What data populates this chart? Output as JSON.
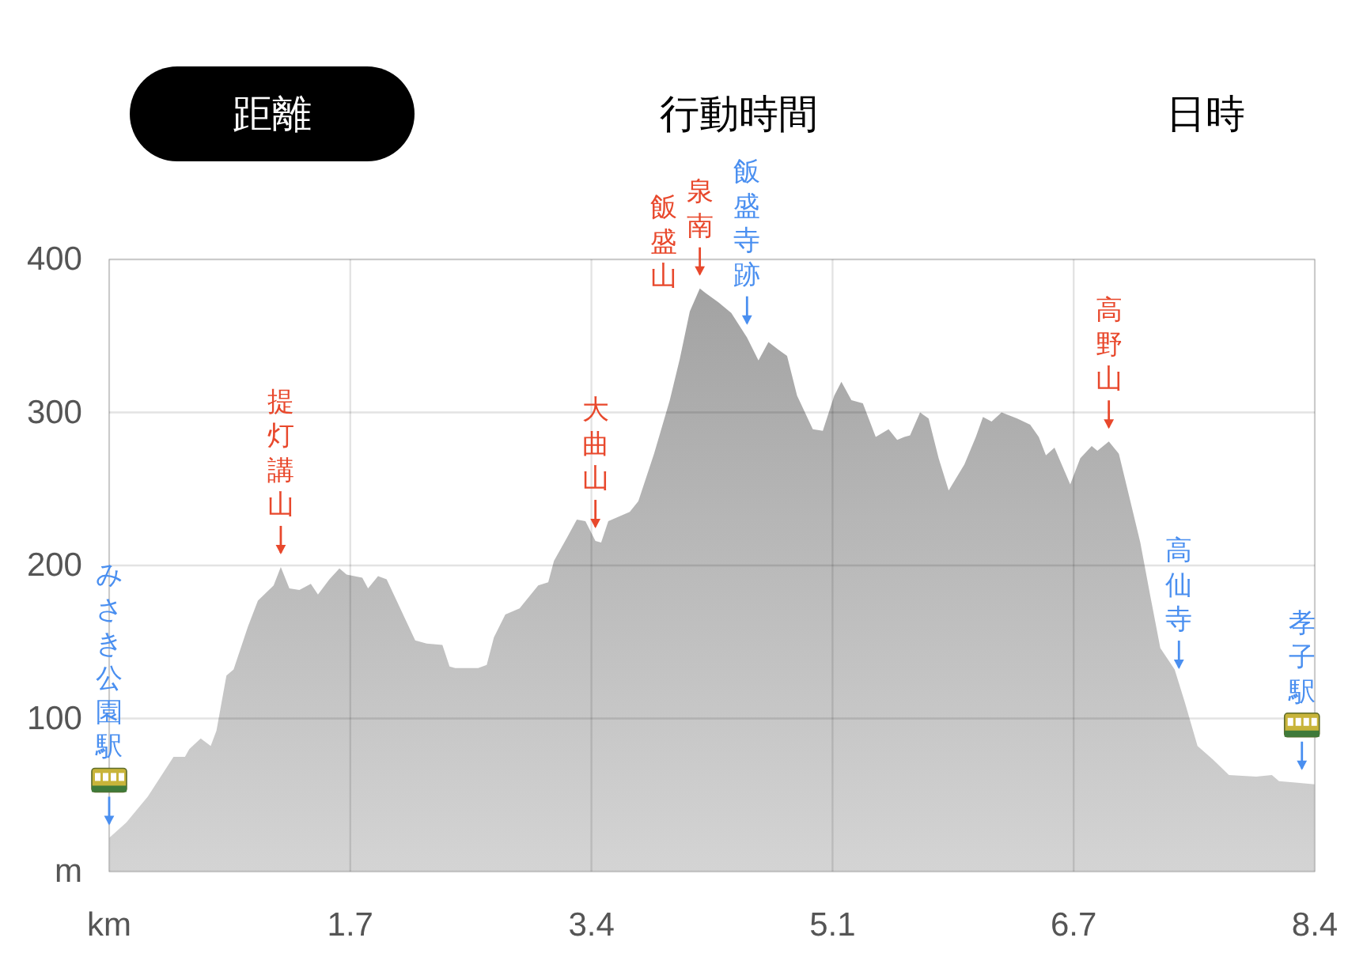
{
  "chart_data": {
    "type": "area",
    "color": "#a0a0a0",
    "x": [
      0,
      0.12,
      0.27,
      0.45,
      0.53,
      0.56,
      0.64,
      0.71,
      0.75,
      0.82,
      0.87,
      0.97,
      1.04,
      1.15,
      1.2,
      1.26,
      1.33,
      1.41,
      1.46,
      1.54,
      1.61,
      1.66,
      1.77,
      1.81,
      1.88,
      1.94,
      2.03,
      2.14,
      2.22,
      2.33,
      2.38,
      2.42,
      2.58,
      2.64,
      2.69,
      2.77,
      2.87,
      3.0,
      3.07,
      3.11,
      3.2,
      3.27,
      3.33,
      3.4,
      3.44,
      3.49,
      3.64,
      3.7,
      3.81,
      3.92,
      3.99,
      4.06,
      4.13,
      4.17,
      4.26,
      4.35,
      4.46,
      4.54,
      4.61,
      4.68,
      4.74,
      4.81,
      4.92,
      4.99,
      5.07,
      5.12,
      5.19,
      5.27,
      5.36,
      5.45,
      5.51,
      5.56,
      5.6,
      5.67,
      5.73,
      5.8,
      5.87,
      5.98,
      6.06,
      6.11,
      6.17,
      6.24,
      6.35,
      6.44,
      6.5,
      6.55,
      6.61,
      6.66,
      6.72,
      6.79,
      6.87,
      6.91,
      6.99,
      7.06,
      7.13,
      7.21,
      7.28,
      7.35,
      7.45,
      7.52,
      7.61,
      7.72,
      7.83,
      8.02,
      8.13,
      8.18,
      8.31,
      8.43
    ],
    "values": [
      22,
      32,
      49,
      75,
      75,
      80,
      87,
      82,
      92,
      128,
      132,
      160,
      177,
      187,
      199,
      185,
      184,
      188,
      181,
      191,
      198,
      194,
      192,
      185,
      193,
      191,
      173,
      151,
      149,
      148,
      134,
      133,
      133,
      135,
      153,
      168,
      172,
      187,
      189,
      203,
      218,
      230,
      229,
      216,
      215,
      229,
      235,
      242,
      273,
      308,
      335,
      366,
      381,
      378,
      372,
      365,
      349,
      334,
      346,
      341,
      337,
      311,
      289,
      288,
      311,
      320,
      308,
      306,
      284,
      289,
      282,
      284,
      285,
      300,
      296,
      270,
      249,
      266,
      284,
      297,
      294,
      300,
      296,
      292,
      284,
      272,
      277,
      266,
      253,
      270,
      278,
      275,
      281,
      273,
      246,
      215,
      180,
      146,
      132,
      111,
      82,
      73,
      63,
      62,
      63,
      59,
      58,
      57
    ],
    "xlim": [
      0,
      8.43
    ],
    "ylim": [
      0,
      400
    ],
    "xticks": [
      {
        "value": 0,
        "label": "km"
      },
      {
        "value": 1.686,
        "label": "1.7"
      },
      {
        "value": 3.372,
        "label": "3.4"
      },
      {
        "value": 5.058,
        "label": "5.1"
      },
      {
        "value": 6.744,
        "label": "6.7"
      },
      {
        "value": 8.43,
        "label": "8.4"
      }
    ],
    "yticks": [
      {
        "value": 0,
        "label": "m"
      },
      100,
      200,
      300,
      400
    ],
    "grid": true,
    "annotations": [
      "距離",
      "行動時間",
      "日時",
      {
        "text": "みさき公園駅",
        "x": 0,
        "y": 22
      },
      {
        "text": "提灯講山",
        "x": 1.2,
        "y": 199
      },
      {
        "text": "大曲山",
        "x": 3.4,
        "y": 216
      },
      {
        "text": "泉南飯盛山",
        "x": 4.13,
        "y": 381
      },
      {
        "text": "飯盛寺跡",
        "x": 4.46,
        "y": 349
      },
      {
        "text": "高野山",
        "x": 6.99,
        "y": 281
      },
      {
        "text": "高仙寺",
        "x": 7.48,
        "y": 124
      },
      {
        "text": "孝子駅",
        "x": 8.34,
        "y": 58
      }
    ]
  }
}
